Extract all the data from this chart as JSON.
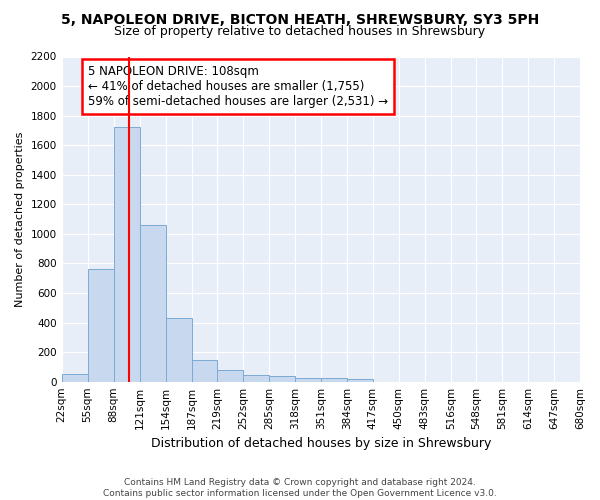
{
  "title_line1": "5, NAPOLEON DRIVE, BICTON HEATH, SHREWSBURY, SY3 5PH",
  "title_line2": "Size of property relative to detached houses in Shrewsbury",
  "xlabel": "Distribution of detached houses by size in Shrewsbury",
  "ylabel": "Number of detached properties",
  "footer_line1": "Contains HM Land Registry data © Crown copyright and database right 2024.",
  "footer_line2": "Contains public sector information licensed under the Open Government Licence v3.0.",
  "annotation_line1": "5 NAPOLEON DRIVE: 108sqm",
  "annotation_line2": "← 41% of detached houses are smaller (1,755)",
  "annotation_line3": "59% of semi-detached houses are larger (2,531) →",
  "property_size": 108,
  "bin_width": 33,
  "bar_edges": [
    22,
    55,
    88,
    121,
    154,
    187,
    219,
    252,
    285,
    318,
    351,
    384,
    417,
    450,
    483,
    516,
    548,
    581,
    614,
    647,
    680
  ],
  "bar_heights": [
    55,
    760,
    1725,
    1060,
    430,
    150,
    80,
    48,
    40,
    28,
    28,
    18,
    0,
    0,
    0,
    0,
    0,
    0,
    0,
    0
  ],
  "bar_color": "#c8d8ee",
  "bar_edge_color": "#7aaad4",
  "vline_color": "red",
  "vline_x": 108,
  "bg_color": "#e8eef8",
  "ylim": [
    0,
    2200
  ],
  "yticks": [
    0,
    200,
    400,
    600,
    800,
    1000,
    1200,
    1400,
    1600,
    1800,
    2000,
    2200
  ],
  "title_fontsize": 10,
  "subtitle_fontsize": 9,
  "xlabel_fontsize": 9,
  "ylabel_fontsize": 8,
  "tick_fontsize": 7.5,
  "footer_fontsize": 6.5,
  "annot_fontsize": 8.5
}
